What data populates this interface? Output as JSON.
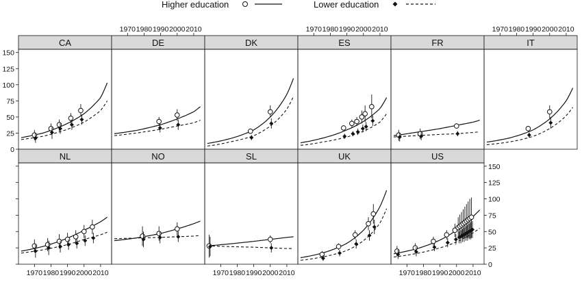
{
  "chart_data": {
    "type": "line",
    "legend": {
      "placement": "top",
      "entries": [
        {
          "name": "Higher education",
          "marker": "open-circle",
          "line": "solid"
        },
        {
          "name": "Lower education",
          "marker": "filled-diamond",
          "line": "dashed"
        }
      ]
    },
    "x_ticks": [
      1970,
      1980,
      1990,
      2000,
      2010
    ],
    "y_ticks": [
      0,
      25,
      50,
      75,
      100,
      125,
      150
    ],
    "xlim": [
      1962,
      2015
    ],
    "ylim": [
      0,
      155
    ],
    "grid": false,
    "colors": {
      "ink": "#111111",
      "strip": "#d9d9d9"
    },
    "panels": [
      {
        "label": "CA",
        "high_curve": {
          "x": [
            1962,
            1975,
            1990,
            2000,
            2010,
            2014
          ],
          "y": [
            18,
            25,
            40,
            55,
            80,
            103
          ]
        },
        "low_curve": {
          "x": [
            1962,
            1975,
            1990,
            2000,
            2010,
            2014
          ],
          "y": [
            15,
            20,
            31,
            42,
            60,
            75
          ]
        },
        "high_points": [
          {
            "x": 1970,
            "y": 22,
            "lo": 14,
            "hi": 30
          },
          {
            "x": 1980,
            "y": 32,
            "lo": 24,
            "hi": 40
          },
          {
            "x": 1985,
            "y": 38,
            "lo": 28,
            "hi": 46
          },
          {
            "x": 1992,
            "y": 48,
            "lo": 40,
            "hi": 56
          },
          {
            "x": 1998,
            "y": 60,
            "lo": 52,
            "hi": 70
          }
        ],
        "low_points": [
          {
            "x": 1970,
            "y": 17,
            "lo": 10,
            "hi": 25
          },
          {
            "x": 1980,
            "y": 26,
            "lo": 16,
            "hi": 34
          },
          {
            "x": 1985,
            "y": 32,
            "lo": 24,
            "hi": 40
          },
          {
            "x": 1992,
            "y": 38,
            "lo": 30,
            "hi": 46
          },
          {
            "x": 1998,
            "y": 46,
            "lo": 38,
            "hi": 54
          }
        ]
      },
      {
        "label": "DE",
        "high_curve": {
          "x": [
            1962,
            1975,
            1990,
            2000,
            2010,
            2014
          ],
          "y": [
            24,
            29,
            38,
            47,
            58,
            66
          ]
        },
        "low_curve": {
          "x": [
            1962,
            1975,
            1990,
            2000,
            2010,
            2014
          ],
          "y": [
            21,
            25,
            31,
            36,
            41,
            45
          ]
        },
        "high_points": [
          {
            "x": 1989,
            "y": 43,
            "lo": 36,
            "hi": 50
          },
          {
            "x": 2000,
            "y": 53,
            "lo": 44,
            "hi": 62
          }
        ],
        "low_points": [
          {
            "x": 1989,
            "y": 33,
            "lo": 26,
            "hi": 40
          },
          {
            "x": 2000,
            "y": 38,
            "lo": 30,
            "hi": 46
          }
        ]
      },
      {
        "label": "DK",
        "high_curve": {
          "x": [
            1962,
            1975,
            1990,
            2000,
            2010,
            2014
          ],
          "y": [
            9,
            16,
            30,
            50,
            85,
            110
          ]
        },
        "low_curve": {
          "x": [
            1962,
            1975,
            1990,
            2000,
            2010,
            2014
          ],
          "y": [
            5,
            11,
            21,
            36,
            62,
            82
          ]
        },
        "high_points": [
          {
            "x": 1988,
            "y": 28,
            "lo": 24,
            "hi": 32
          },
          {
            "x": 2000,
            "y": 58,
            "lo": 50,
            "hi": 68
          }
        ],
        "low_points": [
          {
            "x": 1988,
            "y": 18,
            "lo": 14,
            "hi": 22
          },
          {
            "x": 2000,
            "y": 40,
            "lo": 32,
            "hi": 48
          }
        ]
      },
      {
        "label": "ES",
        "high_curve": {
          "x": [
            1962,
            1975,
            1990,
            2000,
            2010,
            2014
          ],
          "y": [
            10,
            17,
            30,
            43,
            63,
            80
          ]
        },
        "low_curve": {
          "x": [
            1962,
            1975,
            1990,
            2000,
            2010,
            2014
          ],
          "y": [
            6,
            11,
            19,
            28,
            42,
            55
          ]
        },
        "high_points": [
          {
            "x": 1988,
            "y": 33,
            "lo": 29,
            "hi": 37
          },
          {
            "x": 1993,
            "y": 40,
            "lo": 34,
            "hi": 46
          },
          {
            "x": 1996,
            "y": 43,
            "lo": 36,
            "hi": 50
          },
          {
            "x": 1999,
            "y": 50,
            "lo": 40,
            "hi": 60
          },
          {
            "x": 2001,
            "y": 55,
            "lo": 42,
            "hi": 68
          },
          {
            "x": 2005,
            "y": 66,
            "lo": 48,
            "hi": 85
          }
        ],
        "low_points": [
          {
            "x": 1988,
            "y": 20,
            "lo": 16,
            "hi": 24
          },
          {
            "x": 1993,
            "y": 24,
            "lo": 20,
            "hi": 28
          },
          {
            "x": 1996,
            "y": 27,
            "lo": 22,
            "hi": 32
          },
          {
            "x": 1999,
            "y": 32,
            "lo": 26,
            "hi": 38
          },
          {
            "x": 2001,
            "y": 35,
            "lo": 28,
            "hi": 42
          },
          {
            "x": 2005,
            "y": 44,
            "lo": 36,
            "hi": 52
          }
        ]
      },
      {
        "label": "FR",
        "high_curve": {
          "x": [
            1962,
            1975,
            1990,
            2000,
            2010,
            2014
          ],
          "y": [
            21,
            26,
            32,
            37,
            42,
            45
          ]
        },
        "low_curve": {
          "x": [
            1962,
            1975,
            1990,
            2000,
            2010,
            2014
          ],
          "y": [
            19,
            21,
            23,
            24,
            26,
            27
          ]
        },
        "high_points": [
          {
            "x": 1965,
            "y": 22,
            "lo": 13,
            "hi": 30
          },
          {
            "x": 1978,
            "y": 24,
            "lo": 16,
            "hi": 32
          },
          {
            "x": 2000,
            "y": 36,
            "lo": 32,
            "hi": 40
          }
        ],
        "low_points": [
          {
            "x": 1965,
            "y": 19,
            "lo": 12,
            "hi": 26
          },
          {
            "x": 1978,
            "y": 20,
            "lo": 14,
            "hi": 26
          },
          {
            "x": 2000,
            "y": 24,
            "lo": 20,
            "hi": 28
          }
        ]
      },
      {
        "label": "IT",
        "high_curve": {
          "x": [
            1962,
            1975,
            1990,
            2000,
            2010,
            2014
          ],
          "y": [
            11,
            17,
            30,
            47,
            75,
            95
          ]
        },
        "low_curve": {
          "x": [
            1962,
            1975,
            1990,
            2000,
            2010,
            2014
          ],
          "y": [
            7,
            11,
            20,
            32,
            52,
            65
          ]
        },
        "high_points": [
          {
            "x": 1987,
            "y": 32,
            "lo": 28,
            "hi": 36
          },
          {
            "x": 2000,
            "y": 58,
            "lo": 48,
            "hi": 68
          }
        ],
        "low_points": [
          {
            "x": 1987,
            "y": 22,
            "lo": 18,
            "hi": 26
          },
          {
            "x": 2000,
            "y": 41,
            "lo": 32,
            "hi": 50
          }
        ]
      },
      {
        "label": "NL",
        "high_curve": {
          "x": [
            1962,
            1975,
            1990,
            2000,
            2010,
            2014
          ],
          "y": [
            20,
            27,
            40,
            52,
            65,
            72
          ]
        },
        "low_curve": {
          "x": [
            1962,
            1975,
            1990,
            2000,
            2010,
            2014
          ],
          "y": [
            17,
            22,
            30,
            38,
            45,
            49
          ]
        },
        "high_points": [
          {
            "x": 1970,
            "y": 28,
            "lo": 18,
            "hi": 38
          },
          {
            "x": 1978,
            "y": 30,
            "lo": 20,
            "hi": 40
          },
          {
            "x": 1985,
            "y": 35,
            "lo": 24,
            "hi": 46
          },
          {
            "x": 1990,
            "y": 38,
            "lo": 28,
            "hi": 48
          },
          {
            "x": 1995,
            "y": 42,
            "lo": 32,
            "hi": 52
          },
          {
            "x": 2000,
            "y": 50,
            "lo": 40,
            "hi": 60
          },
          {
            "x": 2005,
            "y": 57,
            "lo": 46,
            "hi": 68
          }
        ],
        "low_points": [
          {
            "x": 1970,
            "y": 20,
            "lo": 10,
            "hi": 30
          },
          {
            "x": 1978,
            "y": 25,
            "lo": 14,
            "hi": 36
          },
          {
            "x": 1985,
            "y": 27,
            "lo": 18,
            "hi": 36
          },
          {
            "x": 1990,
            "y": 30,
            "lo": 22,
            "hi": 38
          },
          {
            "x": 1995,
            "y": 32,
            "lo": 24,
            "hi": 40
          },
          {
            "x": 2000,
            "y": 36,
            "lo": 28,
            "hi": 44
          },
          {
            "x": 2005,
            "y": 40,
            "lo": 32,
            "hi": 48
          }
        ]
      },
      {
        "label": "NO",
        "high_curve": {
          "x": [
            1962,
            1975,
            1990,
            2000,
            2010,
            2014
          ],
          "y": [
            36,
            40,
            47,
            54,
            62,
            66
          ]
        },
        "low_curve": {
          "x": [
            1962,
            1975,
            1990,
            2000,
            2010,
            2014
          ],
          "y": [
            39,
            40,
            41,
            42,
            43,
            44
          ]
        },
        "high_points": [
          {
            "x": 1979,
            "y": 43,
            "lo": 28,
            "hi": 58
          },
          {
            "x": 1989,
            "y": 47,
            "lo": 36,
            "hi": 58
          },
          {
            "x": 2000,
            "y": 54,
            "lo": 44,
            "hi": 64
          }
        ],
        "low_points": [
          {
            "x": 1979,
            "y": 38,
            "lo": 26,
            "hi": 50
          },
          {
            "x": 1989,
            "y": 41,
            "lo": 32,
            "hi": 50
          },
          {
            "x": 2000,
            "y": 42,
            "lo": 34,
            "hi": 50
          }
        ]
      },
      {
        "label": "SL",
        "high_curve": {
          "x": [
            1962,
            1975,
            1990,
            2000,
            2010,
            2014
          ],
          "y": [
            28,
            31,
            35,
            38,
            41,
            42
          ]
        },
        "low_curve": {
          "x": [
            1962,
            1975,
            1990,
            2000,
            2010,
            2014
          ],
          "y": [
            28,
            27,
            26,
            25,
            24,
            24
          ]
        },
        "high_points": [
          {
            "x": 1963,
            "y": 28,
            "lo": 10,
            "hi": 45
          },
          {
            "x": 2000,
            "y": 38,
            "lo": 32,
            "hi": 44
          }
        ],
        "low_points": [
          {
            "x": 1963,
            "y": 27,
            "lo": 12,
            "hi": 42
          },
          {
            "x": 2000,
            "y": 25,
            "lo": 18,
            "hi": 32
          }
        ]
      },
      {
        "label": "UK",
        "high_curve": {
          "x": [
            1962,
            1975,
            1990,
            2000,
            2010,
            2014
          ],
          "y": [
            10,
            17,
            32,
            52,
            88,
            113
          ]
        },
        "low_curve": {
          "x": [
            1962,
            1975,
            1990,
            2000,
            2010,
            2014
          ],
          "y": [
            6,
            11,
            21,
            36,
            63,
            85
          ]
        },
        "high_points": [
          {
            "x": 1975,
            "y": 15,
            "lo": 10,
            "hi": 20
          },
          {
            "x": 1985,
            "y": 27,
            "lo": 22,
            "hi": 32
          },
          {
            "x": 1995,
            "y": 45,
            "lo": 38,
            "hi": 52
          },
          {
            "x": 2003,
            "y": 62,
            "lo": 52,
            "hi": 72
          },
          {
            "x": 2006,
            "y": 77,
            "lo": 62,
            "hi": 92
          }
        ],
        "low_points": [
          {
            "x": 1975,
            "y": 9,
            "lo": 5,
            "hi": 14
          },
          {
            "x": 1985,
            "y": 17,
            "lo": 12,
            "hi": 22
          },
          {
            "x": 1995,
            "y": 31,
            "lo": 24,
            "hi": 38
          },
          {
            "x": 2003,
            "y": 44,
            "lo": 36,
            "hi": 52
          },
          {
            "x": 2006,
            "y": 57,
            "lo": 46,
            "hi": 68
          }
        ]
      },
      {
        "label": "US",
        "high_curve": {
          "x": [
            1962,
            1975,
            1990,
            2000,
            2010,
            2014
          ],
          "y": [
            16,
            23,
            37,
            52,
            73,
            83
          ]
        },
        "low_curve": {
          "x": [
            1962,
            1975,
            1990,
            2000,
            2010,
            2014
          ],
          "y": [
            11,
            16,
            25,
            34,
            48,
            55
          ]
        },
        "high_points": [
          {
            "x": 1964,
            "y": 20,
            "lo": 12,
            "hi": 28
          },
          {
            "x": 1975,
            "y": 25,
            "lo": 18,
            "hi": 32
          },
          {
            "x": 1986,
            "y": 35,
            "lo": 28,
            "hi": 42
          },
          {
            "x": 1994,
            "y": 45,
            "lo": 38,
            "hi": 52
          },
          {
            "x": 1999,
            "y": 52,
            "lo": 42,
            "hi": 62
          },
          {
            "x": 2001,
            "y": 56,
            "lo": 40,
            "hi": 72
          },
          {
            "x": 2002,
            "y": 58,
            "lo": 40,
            "hi": 76
          },
          {
            "x": 2003,
            "y": 60,
            "lo": 40,
            "hi": 80
          },
          {
            "x": 2004,
            "y": 62,
            "lo": 40,
            "hi": 84
          },
          {
            "x": 2005,
            "y": 64,
            "lo": 40,
            "hi": 88
          },
          {
            "x": 2006,
            "y": 66,
            "lo": 40,
            "hi": 92
          },
          {
            "x": 2007,
            "y": 68,
            "lo": 40,
            "hi": 96
          },
          {
            "x": 2008,
            "y": 70,
            "lo": 40,
            "hi": 100
          },
          {
            "x": 2009,
            "y": 72,
            "lo": 40,
            "hi": 102
          }
        ],
        "low_points": [
          {
            "x": 1964,
            "y": 15,
            "lo": 8,
            "hi": 22
          },
          {
            "x": 1975,
            "y": 19,
            "lo": 12,
            "hi": 26
          },
          {
            "x": 1986,
            "y": 26,
            "lo": 20,
            "hi": 32
          },
          {
            "x": 1994,
            "y": 33,
            "lo": 26,
            "hi": 40
          },
          {
            "x": 1999,
            "y": 38,
            "lo": 30,
            "hi": 46
          },
          {
            "x": 2001,
            "y": 41,
            "lo": 32,
            "hi": 50
          },
          {
            "x": 2002,
            "y": 42,
            "lo": 32,
            "hi": 52
          },
          {
            "x": 2003,
            "y": 44,
            "lo": 34,
            "hi": 54
          },
          {
            "x": 2004,
            "y": 45,
            "lo": 34,
            "hi": 56
          },
          {
            "x": 2005,
            "y": 47,
            "lo": 36,
            "hi": 58
          },
          {
            "x": 2006,
            "y": 48,
            "lo": 36,
            "hi": 60
          },
          {
            "x": 2007,
            "y": 50,
            "lo": 38,
            "hi": 62
          },
          {
            "x": 2008,
            "y": 51,
            "lo": 38,
            "hi": 64
          },
          {
            "x": 2009,
            "y": 53,
            "lo": 40,
            "hi": 66
          }
        ]
      }
    ]
  }
}
